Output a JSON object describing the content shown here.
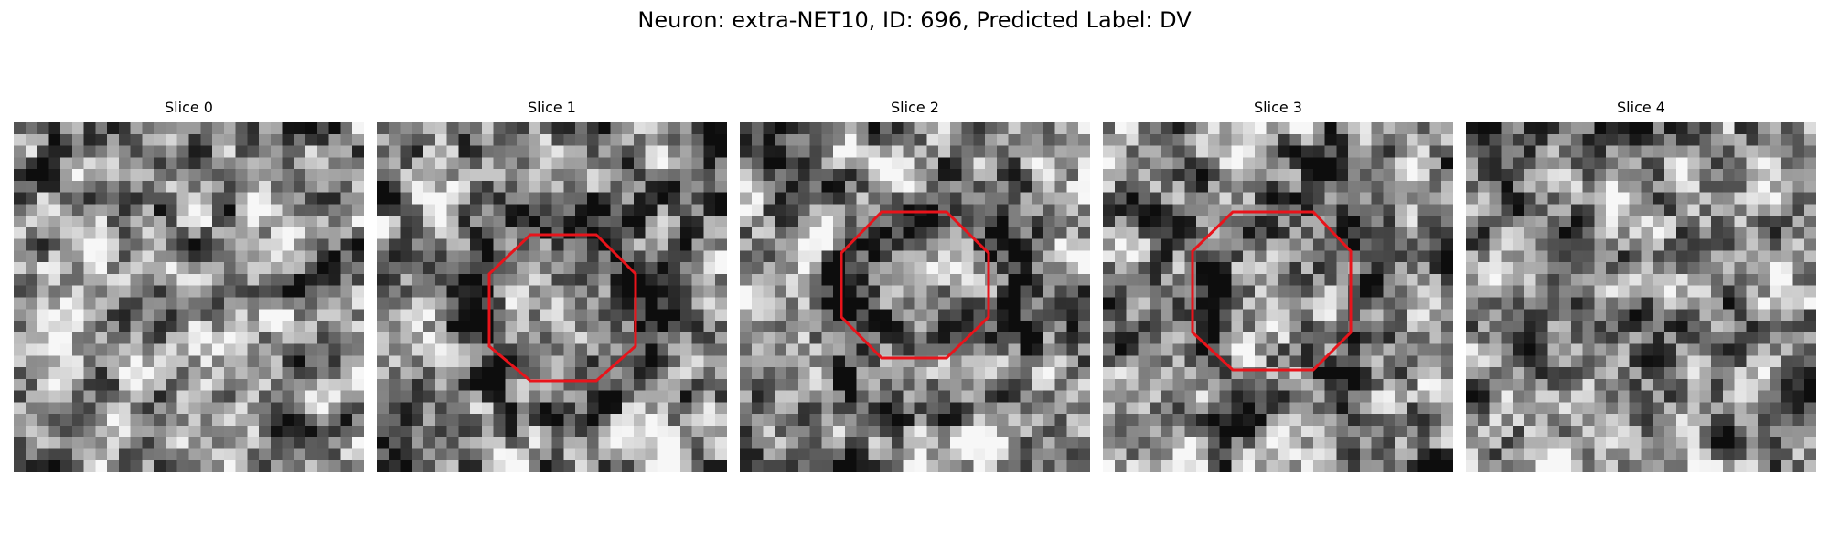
{
  "figure": {
    "title": "Neuron: extra-NET10, ID: 696, Predicted Label: DV"
  },
  "panels": [
    {
      "title": "Slice 0",
      "roi": false,
      "seed": 11
    },
    {
      "title": "Slice 1",
      "roi": true,
      "seed": 23
    },
    {
      "title": "Slice 2",
      "roi": true,
      "seed": 37
    },
    {
      "title": "Slice 3",
      "roi": true,
      "seed": 41
    },
    {
      "title": "Slice 4",
      "roi": false,
      "seed": 53
    }
  ],
  "colors": {
    "roi_outline": "#e8141b",
    "colormap": "gray"
  }
}
